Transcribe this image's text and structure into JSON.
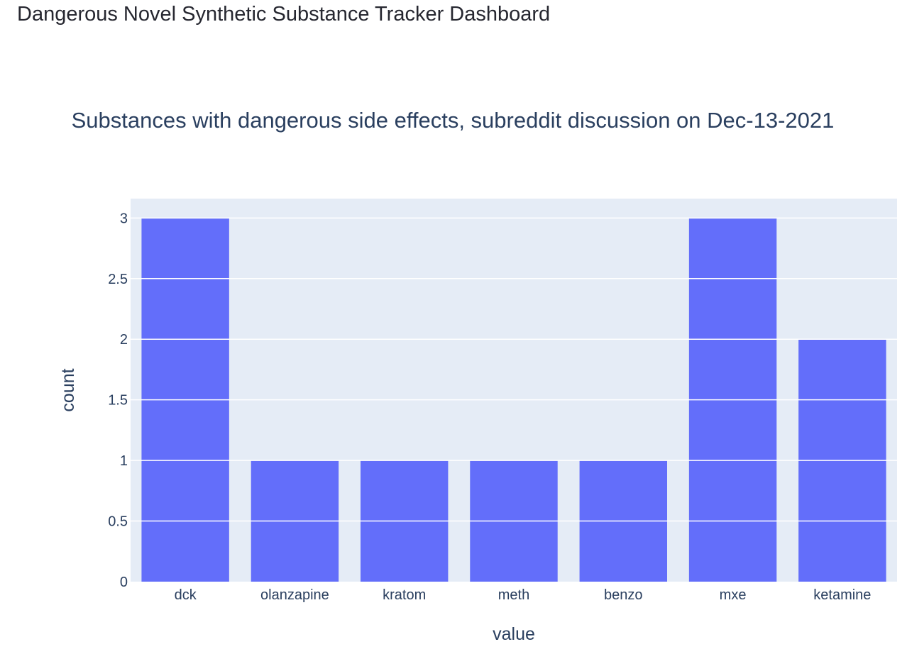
{
  "header": {
    "title": "Dangerous Novel Synthetic Substance Tracker Dashboard"
  },
  "colors": {
    "bar": "#636efa",
    "plot_bg": "#e5ecf6",
    "grid": "#ffffff",
    "text": "#2a3f5f"
  },
  "chart_data": {
    "type": "bar",
    "title": "Substances with dangerous side effects, subreddit discussion on Dec-13-2021",
    "xlabel": "value",
    "ylabel": "count",
    "categories": [
      "dck",
      "olanzapine",
      "kratom",
      "meth",
      "benzo",
      "mxe",
      "ketamine"
    ],
    "values": [
      3,
      1,
      1,
      1,
      1,
      3,
      2
    ],
    "ylim": [
      0,
      3.16
    ],
    "yticks": [
      0,
      0.5,
      1,
      1.5,
      2,
      2.5,
      3
    ],
    "ytick_labels": [
      "0",
      "0.5",
      "1",
      "1.5",
      "2",
      "2.5",
      "3"
    ],
    "grid": true,
    "legend": "none"
  }
}
